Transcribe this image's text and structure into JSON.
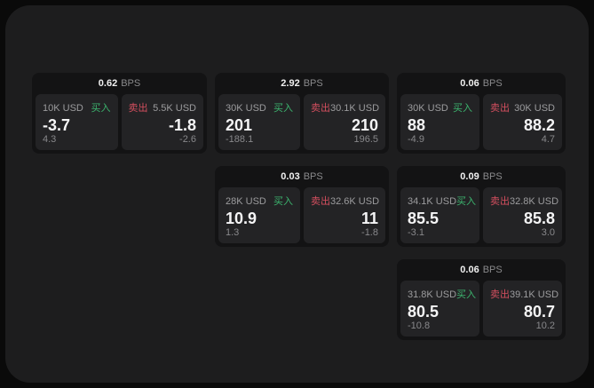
{
  "labels": {
    "bps": "BPS",
    "buy": "买入",
    "sell": "卖出"
  },
  "colors": {
    "page_bg": "#0a0a0a",
    "panel_bg": "#1d1d1e",
    "card_bg": "#131314",
    "tile_bg": "#232325",
    "buy_accent": "#3cb46e",
    "sell_accent": "#d44f5f",
    "value_text": "#f5f5f6",
    "muted_text": "#8f8f92"
  },
  "cards": [
    {
      "bps": "0.62",
      "buy": {
        "amount": "10K USD",
        "value": "-3.7",
        "change": "4.3"
      },
      "sell": {
        "amount": "5.5K USD",
        "value": "-1.8",
        "change": "-2.6"
      }
    },
    {
      "bps": "2.92",
      "buy": {
        "amount": "30K USD",
        "value": "201",
        "change": "-188.1"
      },
      "sell": {
        "amount": "30.1K USD",
        "value": "210",
        "change": "196.5"
      }
    },
    {
      "bps": "0.06",
      "buy": {
        "amount": "30K USD",
        "value": "88",
        "change": "-4.9"
      },
      "sell": {
        "amount": "30K USD",
        "value": "88.2",
        "change": "4.7"
      }
    },
    {
      "bps": "0.03",
      "buy": {
        "amount": "28K USD",
        "value": "10.9",
        "change": "1.3"
      },
      "sell": {
        "amount": "32.6K USD",
        "value": "11",
        "change": "-1.8"
      }
    },
    {
      "bps": "0.09",
      "buy": {
        "amount": "34.1K USD",
        "value": "85.5",
        "change": "-3.1"
      },
      "sell": {
        "amount": "32.8K USD",
        "value": "85.8",
        "change": "3.0"
      }
    },
    {
      "bps": "0.06",
      "buy": {
        "amount": "31.8K USD",
        "value": "80.5",
        "change": "-10.8"
      },
      "sell": {
        "amount": "39.1K USD",
        "value": "80.7",
        "change": "10.2"
      }
    }
  ]
}
